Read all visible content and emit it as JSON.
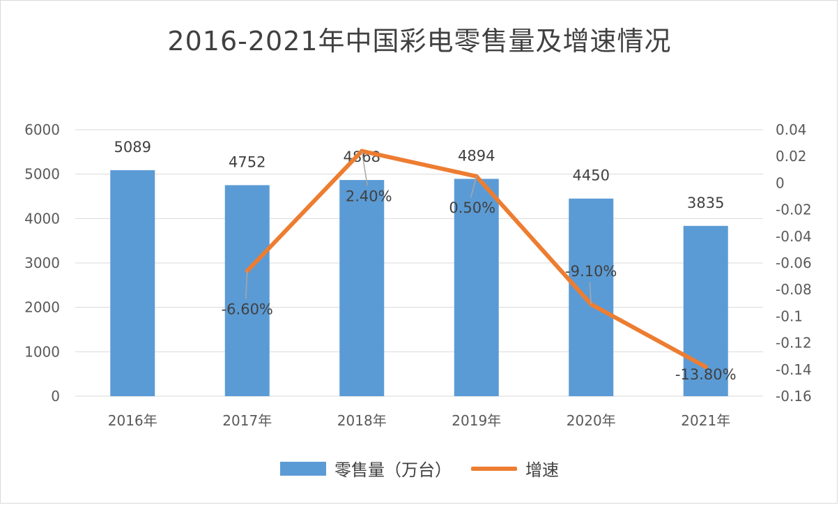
{
  "colors": {
    "bar": "#5b9bd5",
    "line": "#ed7d31",
    "grid": "#d9d9d9",
    "leader": "#a6a6a6"
  },
  "chart_data": {
    "type": "bar",
    "title": "2016-2021年中国彩电零售量及增速情况",
    "categories": [
      "2016年",
      "2017年",
      "2018年",
      "2019年",
      "2020年",
      "2021年"
    ],
    "series": [
      {
        "name": "零售量（万台）",
        "type": "bar",
        "axis": "left",
        "values": [
          5089,
          4752,
          4868,
          4894,
          4450,
          3835
        ],
        "labels": [
          "5089",
          "4752",
          "4868",
          "4894",
          "4450",
          "3835"
        ]
      },
      {
        "name": "增速",
        "type": "line",
        "axis": "right",
        "values": [
          null,
          -0.066,
          0.024,
          0.005,
          -0.091,
          -0.138
        ],
        "labels": [
          "",
          "-6.60%",
          "2.40%",
          "0.50%",
          "-9.10%",
          "-13.80%"
        ]
      }
    ],
    "y_left": {
      "min": 0,
      "max": 6000,
      "step": 1000,
      "ticks": [
        "0",
        "1000",
        "2000",
        "3000",
        "4000",
        "5000",
        "6000"
      ]
    },
    "y_right": {
      "min": -0.16,
      "max": 0.04,
      "step": 0.02,
      "ticks": [
        "-0.16",
        "-0.14",
        "-0.12",
        "-0.1",
        "-0.08",
        "-0.06",
        "-0.04",
        "-0.02",
        "0",
        "0.02",
        "0.04"
      ]
    },
    "grid": true,
    "legend": "bottom"
  }
}
